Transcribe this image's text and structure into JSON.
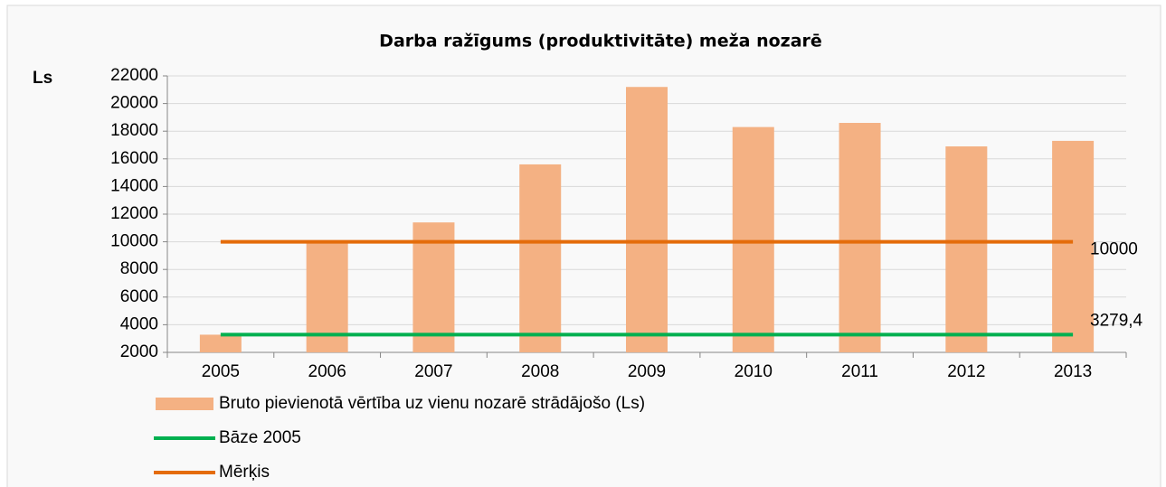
{
  "chart_data": {
    "type": "bar",
    "title": "Darba ražīgums (produktivitāte) meža nozarē",
    "y_label": "Ls",
    "categories": [
      "2005",
      "2006",
      "2007",
      "2008",
      "2009",
      "2010",
      "2011",
      "2012",
      "2013"
    ],
    "series": [
      {
        "name": "Bruto pievienotā vērtība uz vienu nozarē strādājošo (Ls)",
        "color": "#f4b183",
        "type": "bar",
        "values": [
          3279.4,
          10000,
          11400,
          15600,
          21200,
          18300,
          18600,
          16900,
          17300
        ]
      },
      {
        "name": "Bāze 2005",
        "color": "#00b050",
        "type": "line",
        "values": [
          3279.4,
          3279.4,
          3279.4,
          3279.4,
          3279.4,
          3279.4,
          3279.4,
          3279.4,
          3279.4
        ],
        "end_label": "3279,4"
      },
      {
        "name": "Mērķis",
        "color": "#e46c0a",
        "type": "line",
        "values": [
          10000,
          10000,
          10000,
          10000,
          10000,
          10000,
          10000,
          10000,
          10000
        ],
        "end_label": "10000"
      }
    ],
    "ylim": [
      2000,
      22000
    ],
    "yticks": [
      2000,
      4000,
      6000,
      8000,
      10000,
      12000,
      14000,
      16000,
      18000,
      20000,
      22000
    ],
    "grid": true
  }
}
